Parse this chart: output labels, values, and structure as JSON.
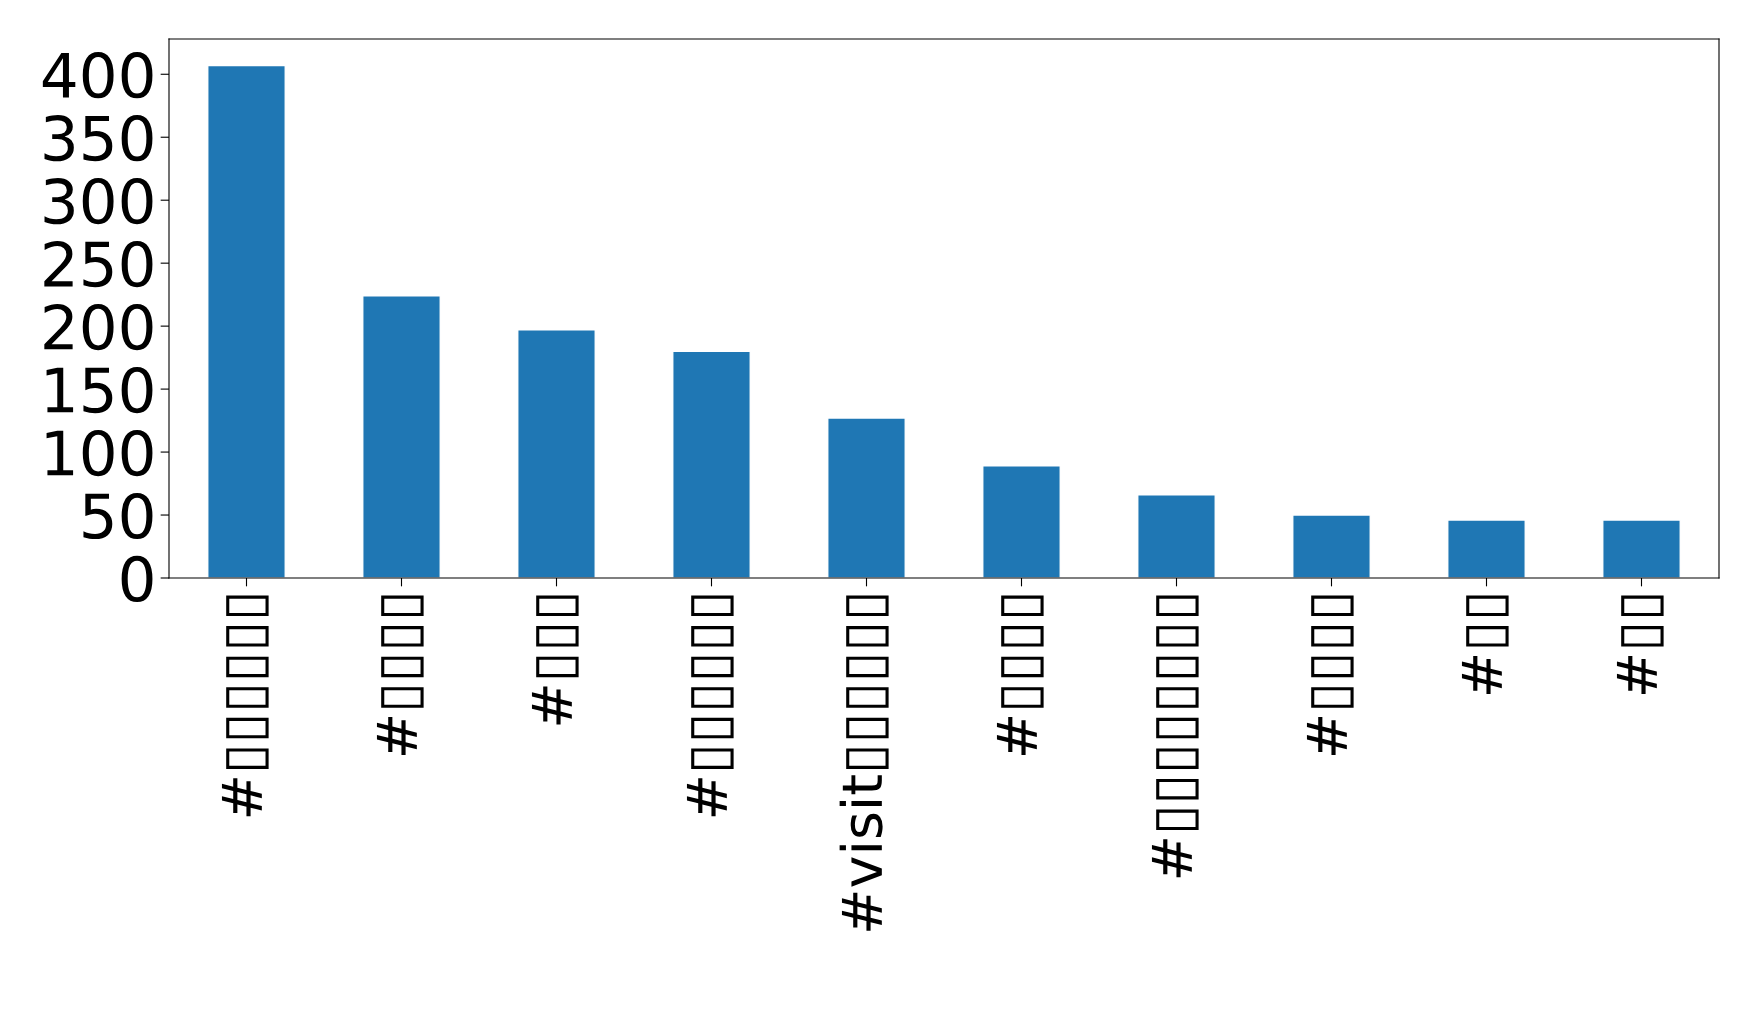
{
  "chart_data": {
    "type": "bar",
    "categories": [
      "#▯▯▯▯▯▯",
      "#▯▯▯▯",
      "#▯▯▯",
      "#▯▯▯▯▯▯",
      "#visit▯▯▯▯▯▯",
      "#▯▯▯▯",
      "#▯▯▯▯▯▯▯▯",
      "#▯▯▯▯",
      "#▯▯",
      "#▯▯"
    ],
    "values": [
      407,
      224,
      197,
      180,
      127,
      89,
      66,
      50,
      46,
      46
    ],
    "color": "#1f77b4",
    "ylim": [
      0,
      428
    ],
    "yticks": [
      0,
      50,
      100,
      150,
      200,
      250,
      300,
      350,
      400
    ],
    "grid": false,
    "legend": false
  }
}
